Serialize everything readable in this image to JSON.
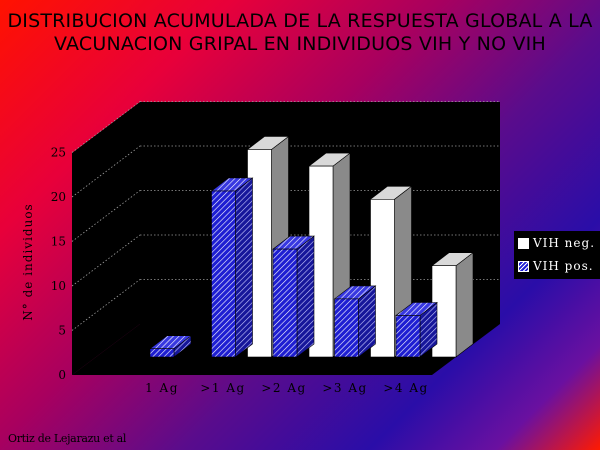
{
  "chart_data": {
    "type": "bar",
    "title_lines": [
      "DISTRIBUCION ACUMULADA DE LA RESPUESTA GLOBAL A LA",
      "VACUNACION GRIPAL EN INDIVIDUOS VIH Y NO VIH"
    ],
    "ylabel": "N° de individuos",
    "xlabel": "",
    "ylim": [
      0,
      25
    ],
    "yticks": [
      "0",
      "5",
      "10",
      "15",
      "20",
      "25"
    ],
    "categories": [
      "1 Ag",
      ">1 Ag",
      ">2 Ag",
      ">3 Ag",
      ">4 Ag"
    ],
    "series": [
      {
        "name": "VIH neg.",
        "values": [
          0,
          25,
          23,
          19,
          11
        ],
        "color": "#ffffff"
      },
      {
        "name": "VIH pos.",
        "values": [
          1,
          20,
          13,
          7,
          5
        ],
        "color": "#1e1ed2",
        "pattern": "hatch"
      }
    ],
    "grid": true,
    "legend_position": "right",
    "plot_background": "#000000"
  },
  "credit": "Ortiz de Lejarazu et al"
}
